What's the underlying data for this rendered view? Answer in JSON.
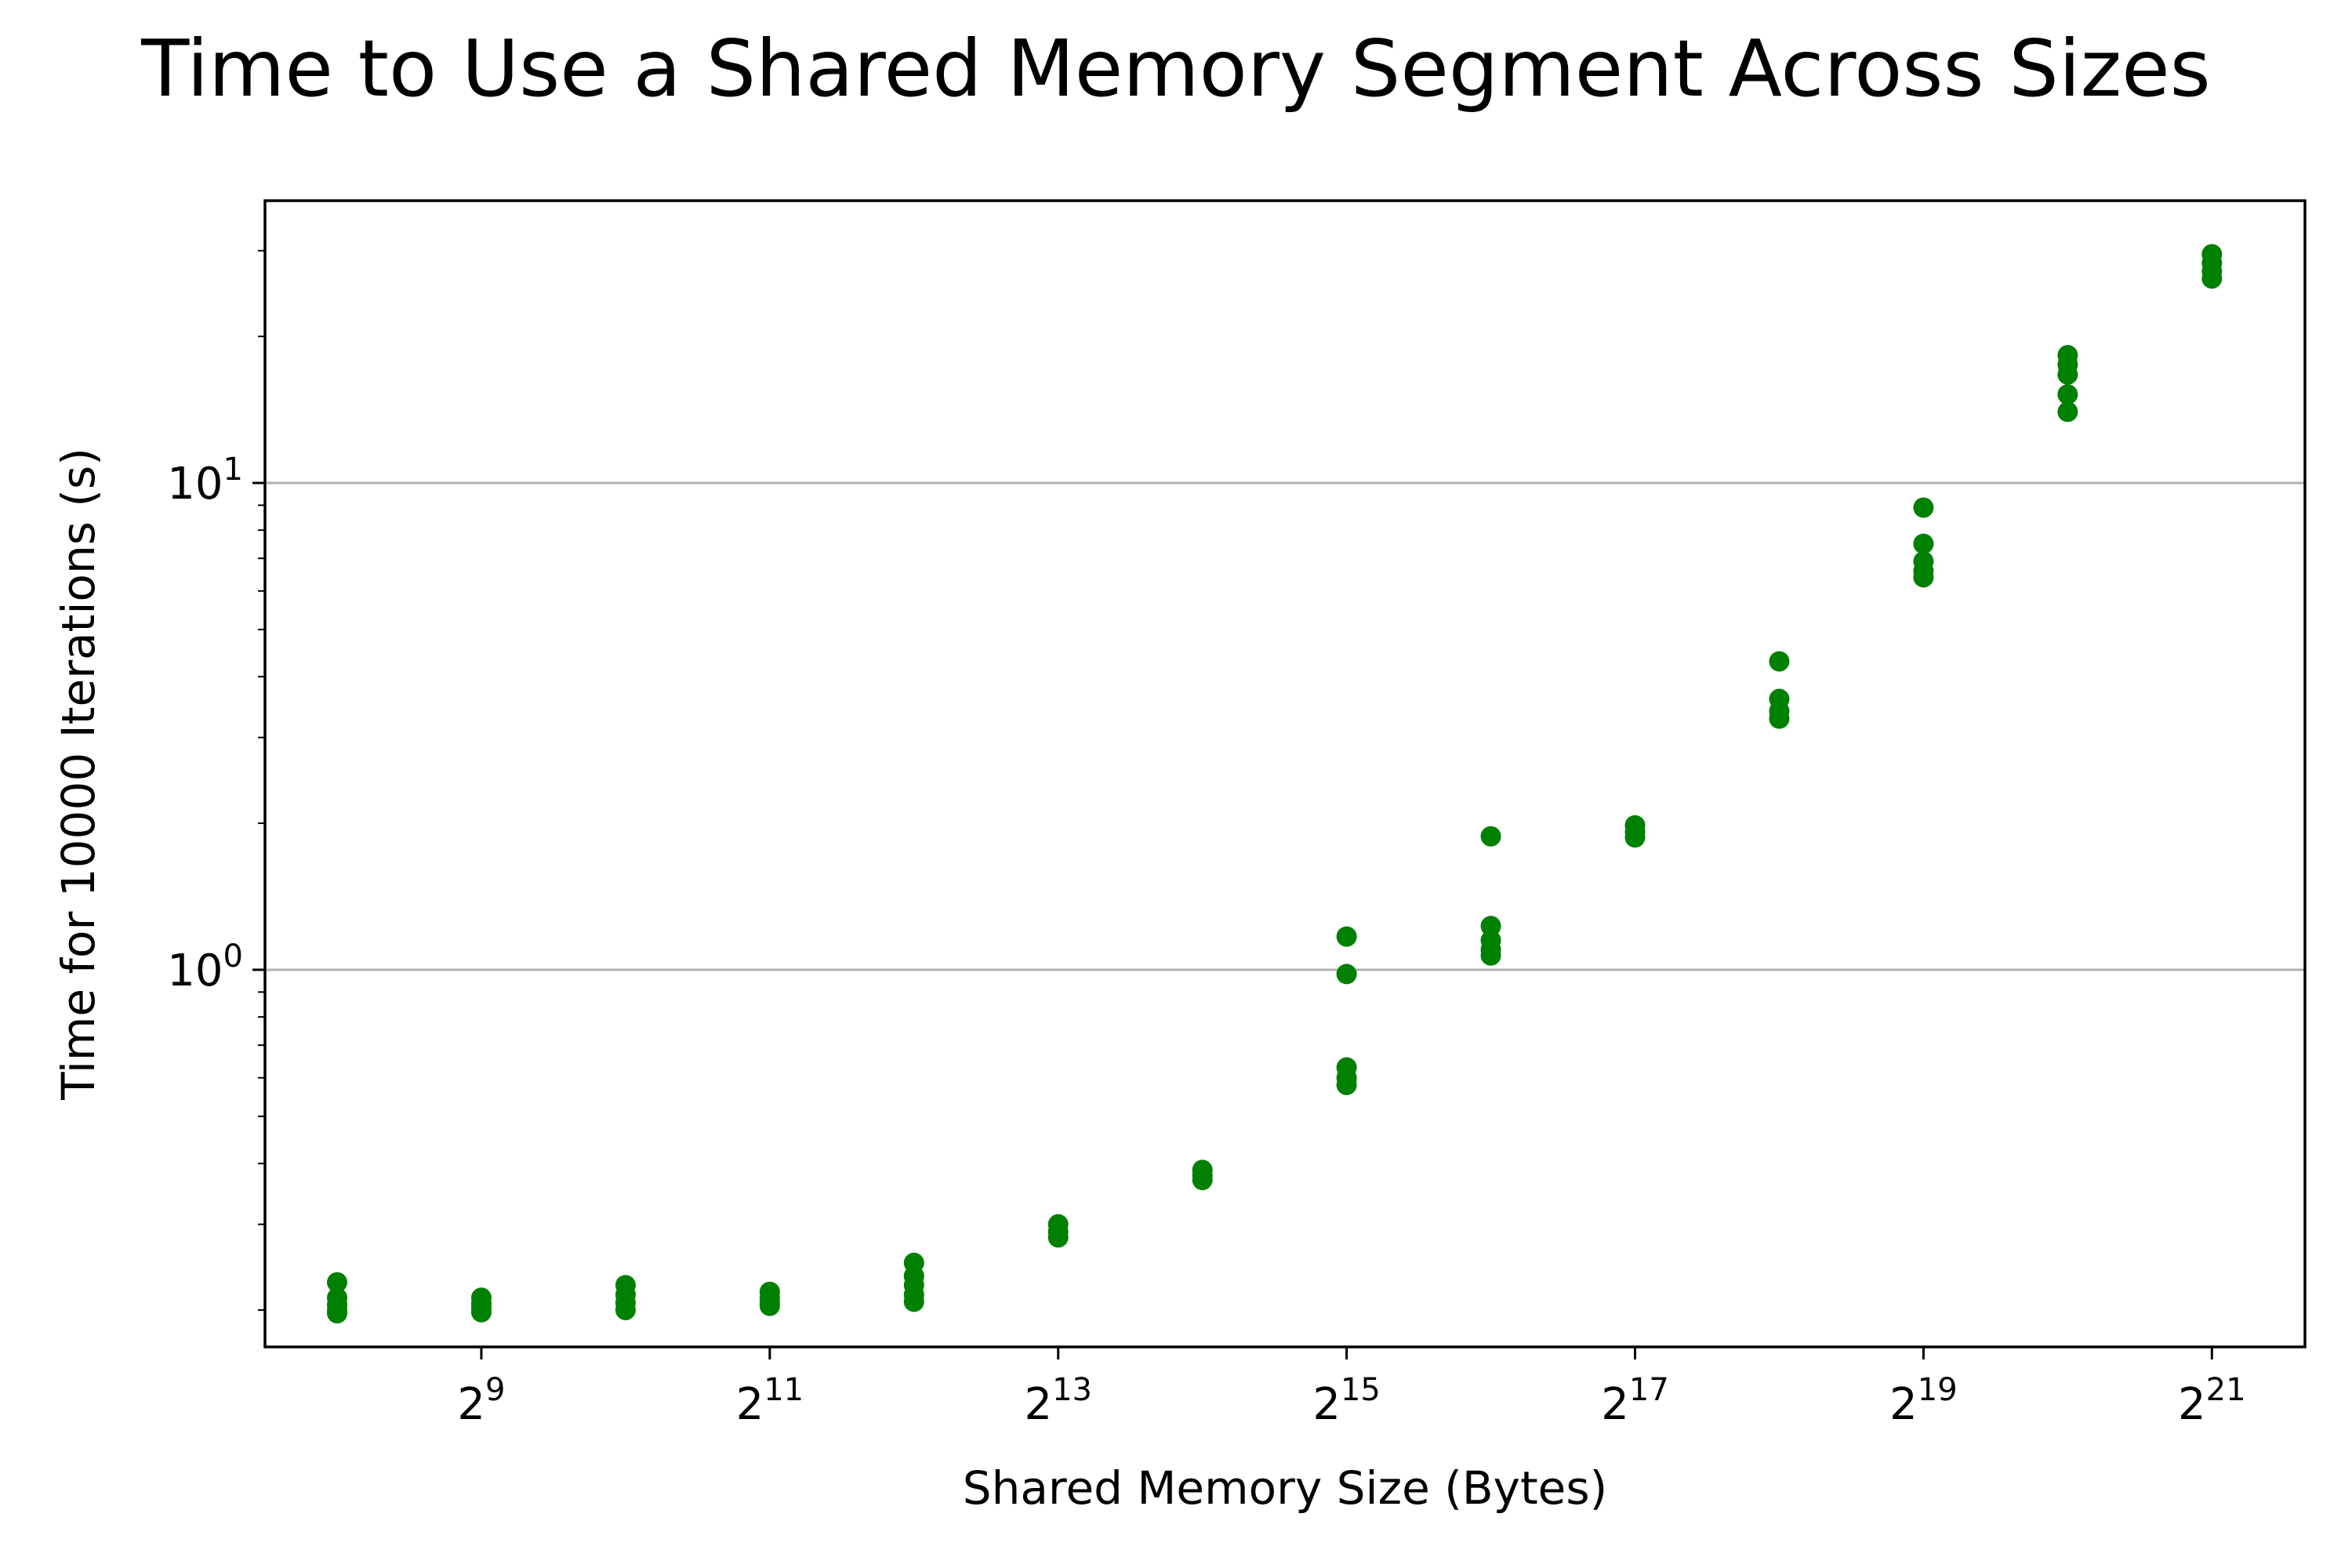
{
  "chart_data": {
    "type": "scatter",
    "title": "Time to Use a Shared Memory Segment Across Sizes",
    "xlabel": "Shared Memory Size (Bytes)",
    "ylabel": "Time for 10000 Iterations (s)",
    "x_scale": "log2",
    "y_scale": "log10",
    "xlim": [
      181,
      3280000
    ],
    "ylim": [
      0.168,
      38
    ],
    "grid": "y-major",
    "marker_color": "#008000",
    "x_ticks": [
      {
        "base": "2",
        "exp": "9",
        "value": 512
      },
      {
        "base": "2",
        "exp": "11",
        "value": 2048
      },
      {
        "base": "2",
        "exp": "13",
        "value": 8192
      },
      {
        "base": "2",
        "exp": "15",
        "value": 32768
      },
      {
        "base": "2",
        "exp": "17",
        "value": 131072
      },
      {
        "base": "2",
        "exp": "19",
        "value": 524288
      },
      {
        "base": "2",
        "exp": "21",
        "value": 2097152
      }
    ],
    "y_ticks": [
      {
        "base": "10",
        "exp": "0",
        "value": 1
      },
      {
        "base": "10",
        "exp": "1",
        "value": 10
      }
    ],
    "y_minor_ticks": [
      0.2,
      0.3,
      0.4,
      0.5,
      0.6,
      0.7,
      0.8,
      0.9,
      2,
      3,
      4,
      5,
      6,
      7,
      8,
      9,
      20,
      30
    ],
    "series": [
      {
        "points": [
          {
            "x": 256,
            "y": 0.228
          },
          {
            "x": 256,
            "y": 0.212
          },
          {
            "x": 256,
            "y": 0.205
          },
          {
            "x": 256,
            "y": 0.2
          },
          {
            "x": 256,
            "y": 0.197
          },
          {
            "x": 512,
            "y": 0.212
          },
          {
            "x": 512,
            "y": 0.206
          },
          {
            "x": 512,
            "y": 0.202
          },
          {
            "x": 512,
            "y": 0.198
          },
          {
            "x": 1024,
            "y": 0.225
          },
          {
            "x": 1024,
            "y": 0.215
          },
          {
            "x": 1024,
            "y": 0.207
          },
          {
            "x": 1024,
            "y": 0.2
          },
          {
            "x": 2048,
            "y": 0.218
          },
          {
            "x": 2048,
            "y": 0.212
          },
          {
            "x": 2048,
            "y": 0.207
          },
          {
            "x": 2048,
            "y": 0.204
          },
          {
            "x": 4096,
            "y": 0.25
          },
          {
            "x": 4096,
            "y": 0.235
          },
          {
            "x": 4096,
            "y": 0.225
          },
          {
            "x": 4096,
            "y": 0.215
          },
          {
            "x": 4096,
            "y": 0.208
          },
          {
            "x": 8192,
            "y": 0.3
          },
          {
            "x": 8192,
            "y": 0.29
          },
          {
            "x": 8192,
            "y": 0.282
          },
          {
            "x": 16384,
            "y": 0.388
          },
          {
            "x": 16384,
            "y": 0.378
          },
          {
            "x": 16384,
            "y": 0.37
          },
          {
            "x": 32768,
            "y": 1.17
          },
          {
            "x": 32768,
            "y": 0.98
          },
          {
            "x": 32768,
            "y": 0.63
          },
          {
            "x": 32768,
            "y": 0.6
          },
          {
            "x": 32768,
            "y": 0.58
          },
          {
            "x": 65536,
            "y": 1.88
          },
          {
            "x": 65536,
            "y": 1.23
          },
          {
            "x": 65536,
            "y": 1.15
          },
          {
            "x": 65536,
            "y": 1.1
          },
          {
            "x": 65536,
            "y": 1.07
          },
          {
            "x": 131072,
            "y": 1.98
          },
          {
            "x": 131072,
            "y": 1.92
          },
          {
            "x": 131072,
            "y": 1.87
          },
          {
            "x": 262144,
            "y": 4.3
          },
          {
            "x": 262144,
            "y": 3.6
          },
          {
            "x": 262144,
            "y": 3.4
          },
          {
            "x": 262144,
            "y": 3.28
          },
          {
            "x": 524288,
            "y": 8.9
          },
          {
            "x": 524288,
            "y": 7.5
          },
          {
            "x": 524288,
            "y": 6.9
          },
          {
            "x": 524288,
            "y": 6.6
          },
          {
            "x": 524288,
            "y": 6.4
          },
          {
            "x": 1048576,
            "y": 18.3
          },
          {
            "x": 1048576,
            "y": 17.5
          },
          {
            "x": 1048576,
            "y": 16.7
          },
          {
            "x": 1048576,
            "y": 15.2
          },
          {
            "x": 1048576,
            "y": 14.0
          },
          {
            "x": 2097152,
            "y": 29.5
          },
          {
            "x": 2097152,
            "y": 28.3
          },
          {
            "x": 2097152,
            "y": 27.2
          },
          {
            "x": 2097152,
            "y": 26.3
          }
        ]
      }
    ]
  }
}
